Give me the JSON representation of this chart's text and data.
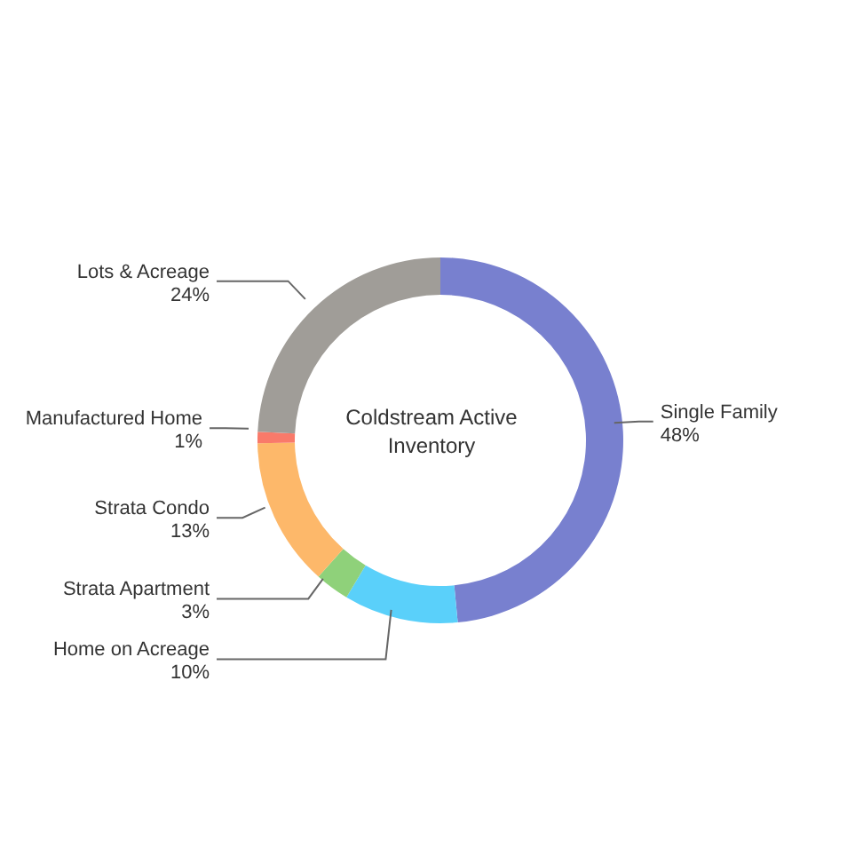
{
  "chart_data": {
    "type": "donut",
    "title": "Coldstream Active Inventory",
    "categories": [
      "Single Family",
      "Home on Acreage",
      "Strata Apartment",
      "Strata Condo",
      "Manufactured Home",
      "Lots & Acreage"
    ],
    "values": [
      48,
      10,
      3,
      13,
      1,
      24
    ],
    "value_labels": [
      "48%",
      "10%",
      "3%",
      "13%",
      "1%",
      "24%"
    ],
    "colors": [
      "#7880cf",
      "#5ad0fa",
      "#8fd17a",
      "#fdb86a",
      "#f97a6a",
      "#a09d98"
    ]
  }
}
